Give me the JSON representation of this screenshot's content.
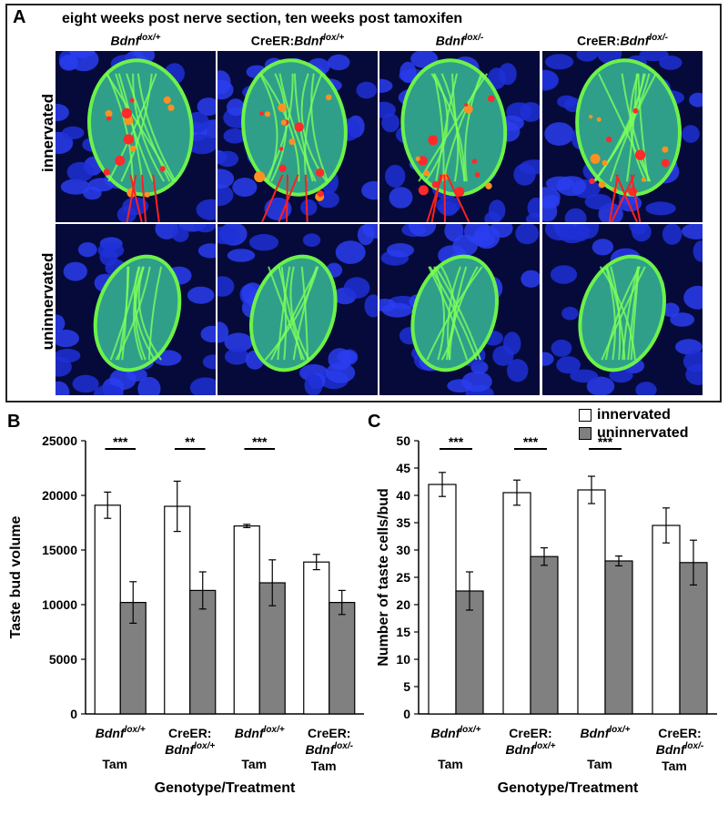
{
  "panelA": {
    "label": "A",
    "title": "eight weeks post nerve section, ten weeks post tamoxifen",
    "columns": [
      {
        "prefix": "",
        "gene": "Bdnf",
        "sup": "lox/+"
      },
      {
        "prefix": "CreER:",
        "gene": "Bdnf",
        "sup": "lox/+"
      },
      {
        "prefix": "",
        "gene": "Bdnf",
        "sup": "lox/-"
      },
      {
        "prefix": "CreER:",
        "gene": "Bdnf",
        "sup": "lox/-"
      }
    ],
    "rows": [
      "innervated",
      "uninnervated"
    ]
  },
  "legend": {
    "items": [
      {
        "label": "innervated",
        "color": "#ffffff"
      },
      {
        "label": "uninnervated",
        "color": "#808080"
      }
    ]
  },
  "chart_data": [
    {
      "type": "bar",
      "panel": "B",
      "ylabel": "Taste bud volume",
      "xlabel": "Genotype/Treatment",
      "ylim": [
        0,
        25000
      ],
      "yticks": [
        0,
        5000,
        10000,
        15000,
        20000,
        25000
      ],
      "categories": [
        {
          "line1": "Bdnf",
          "sup1": "lox/+",
          "line2": "",
          "sup2": "",
          "line3": "Tam"
        },
        {
          "line1": "CreER:",
          "sup1": "",
          "line2": "Bdnf",
          "sup2": "lox/+",
          "line3": ""
        },
        {
          "line1": "Bdnf",
          "sup1": "lox/+",
          "line2": "",
          "sup2": "",
          "line3": "Tam"
        },
        {
          "line1": "CreER:",
          "sup1": "",
          "line2": "Bdnf",
          "sup2": "lox/-",
          "line3": "Tam"
        }
      ],
      "series": [
        {
          "name": "innervated",
          "values": [
            19100,
            19000,
            17200,
            13900
          ],
          "errors": [
            1200,
            2300,
            150,
            700
          ]
        },
        {
          "name": "uninnervated",
          "values": [
            10200,
            11300,
            12000,
            10200
          ],
          "errors": [
            1900,
            1700,
            2100,
            1100
          ]
        }
      ],
      "significance": [
        "***",
        "**",
        "***",
        ""
      ]
    },
    {
      "type": "bar",
      "panel": "C",
      "ylabel": "Number of taste cells/bud",
      "xlabel": "Genotype/Treatment",
      "ylim": [
        0,
        50
      ],
      "yticks": [
        0,
        5,
        10,
        15,
        20,
        25,
        30,
        35,
        40,
        45,
        50
      ],
      "categories": [
        {
          "line1": "Bdnf",
          "sup1": "lox/+",
          "line2": "",
          "sup2": "",
          "line3": "Tam"
        },
        {
          "line1": "CreER:",
          "sup1": "",
          "line2": "Bdnf",
          "sup2": "lox/+",
          "line3": ""
        },
        {
          "line1": "Bdnf",
          "sup1": "lox/+",
          "line2": "",
          "sup2": "",
          "line3": "Tam"
        },
        {
          "line1": "CreER:",
          "sup1": "",
          "line2": "Bdnf",
          "sup2": "lox/-",
          "line3": "Tam"
        }
      ],
      "series": [
        {
          "name": "innervated",
          "values": [
            42,
            40.5,
            41,
            34.5
          ],
          "errors": [
            2.2,
            2.3,
            2.5,
            3.2
          ]
        },
        {
          "name": "uninnervated",
          "values": [
            22.5,
            28.8,
            28,
            27.7
          ],
          "errors": [
            3.5,
            1.6,
            0.9,
            4.1
          ]
        }
      ],
      "significance": [
        "***",
        "***",
        "***",
        ""
      ]
    }
  ]
}
